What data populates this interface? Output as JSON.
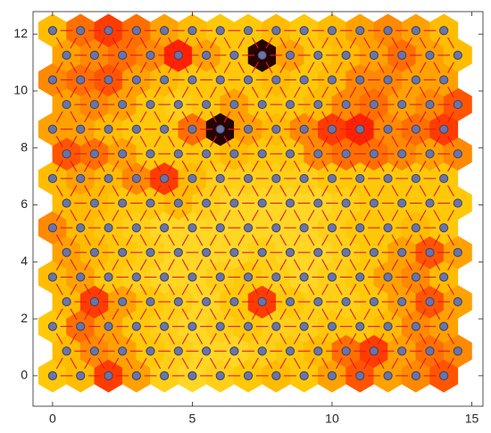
{
  "chart_data": {
    "type": "som-neighbor-distance",
    "xlim": [
      -0.7,
      15.4
    ],
    "ylim": [
      -1.07,
      12.79
    ],
    "xticks": [
      0,
      5,
      10,
      15
    ],
    "yticks": [
      0,
      2,
      4,
      6,
      8,
      10,
      12
    ],
    "colormap": [
      "#fff35a",
      "#ffc400",
      "#ff1a00",
      "#000000"
    ],
    "edge_color": "#e8142c",
    "neuron_color": "#6b73a8",
    "values": [
      [
        0.3,
        0.35,
        0.6,
        0.4,
        0.25,
        0.2,
        0.25,
        0.3,
        0.35,
        0.3,
        0.4,
        0.55,
        0.4,
        0.45,
        0.55
      ],
      [
        0.35,
        0.45,
        0.4,
        0.3,
        0.25,
        0.2,
        0.2,
        0.25,
        0.3,
        0.35,
        0.5,
        0.6,
        0.4,
        0.5,
        0.45
      ],
      [
        0.3,
        0.5,
        0.4,
        0.3,
        0.25,
        0.2,
        0.25,
        0.3,
        0.25,
        0.25,
        0.3,
        0.3,
        0.35,
        0.45,
        0.4
      ],
      [
        0.35,
        0.6,
        0.4,
        0.3,
        0.25,
        0.2,
        0.3,
        0.6,
        0.3,
        0.25,
        0.25,
        0.3,
        0.4,
        0.55,
        0.4
      ],
      [
        0.35,
        0.4,
        0.3,
        0.25,
        0.2,
        0.2,
        0.25,
        0.3,
        0.25,
        0.2,
        0.25,
        0.3,
        0.4,
        0.45,
        0.35
      ],
      [
        0.4,
        0.35,
        0.3,
        0.25,
        0.2,
        0.2,
        0.2,
        0.25,
        0.2,
        0.2,
        0.25,
        0.3,
        0.4,
        0.55,
        0.4
      ],
      [
        0.45,
        0.35,
        0.3,
        0.25,
        0.2,
        0.2,
        0.2,
        0.2,
        0.2,
        0.2,
        0.25,
        0.3,
        0.3,
        0.35,
        0.3
      ],
      [
        0.35,
        0.35,
        0.3,
        0.3,
        0.35,
        0.25,
        0.2,
        0.2,
        0.2,
        0.2,
        0.25,
        0.3,
        0.3,
        0.3,
        0.3
      ],
      [
        0.35,
        0.4,
        0.35,
        0.45,
        0.6,
        0.35,
        0.25,
        0.25,
        0.25,
        0.25,
        0.3,
        0.3,
        0.3,
        0.3,
        0.3
      ],
      [
        0.55,
        0.5,
        0.4,
        0.3,
        0.3,
        0.3,
        0.35,
        0.3,
        0.3,
        0.45,
        0.5,
        0.5,
        0.45,
        0.4,
        0.45
      ],
      [
        0.4,
        0.4,
        0.35,
        0.3,
        0.3,
        0.5,
        0.95,
        0.4,
        0.35,
        0.45,
        0.6,
        0.65,
        0.45,
        0.5,
        0.6
      ],
      [
        0.4,
        0.45,
        0.4,
        0.3,
        0.25,
        0.3,
        0.4,
        0.3,
        0.3,
        0.35,
        0.45,
        0.5,
        0.4,
        0.45,
        0.55
      ],
      [
        0.45,
        0.5,
        0.55,
        0.4,
        0.35,
        0.3,
        0.3,
        0.3,
        0.35,
        0.3,
        0.35,
        0.45,
        0.45,
        0.4,
        0.4
      ],
      [
        0.4,
        0.45,
        0.5,
        0.45,
        0.65,
        0.4,
        0.3,
        0.95,
        0.4,
        0.3,
        0.35,
        0.4,
        0.5,
        0.4,
        0.35
      ],
      [
        0.35,
        0.5,
        0.6,
        0.5,
        0.4,
        0.35,
        0.3,
        0.3,
        0.35,
        0.3,
        0.35,
        0.4,
        0.45,
        0.4,
        0.35
      ]
    ]
  }
}
